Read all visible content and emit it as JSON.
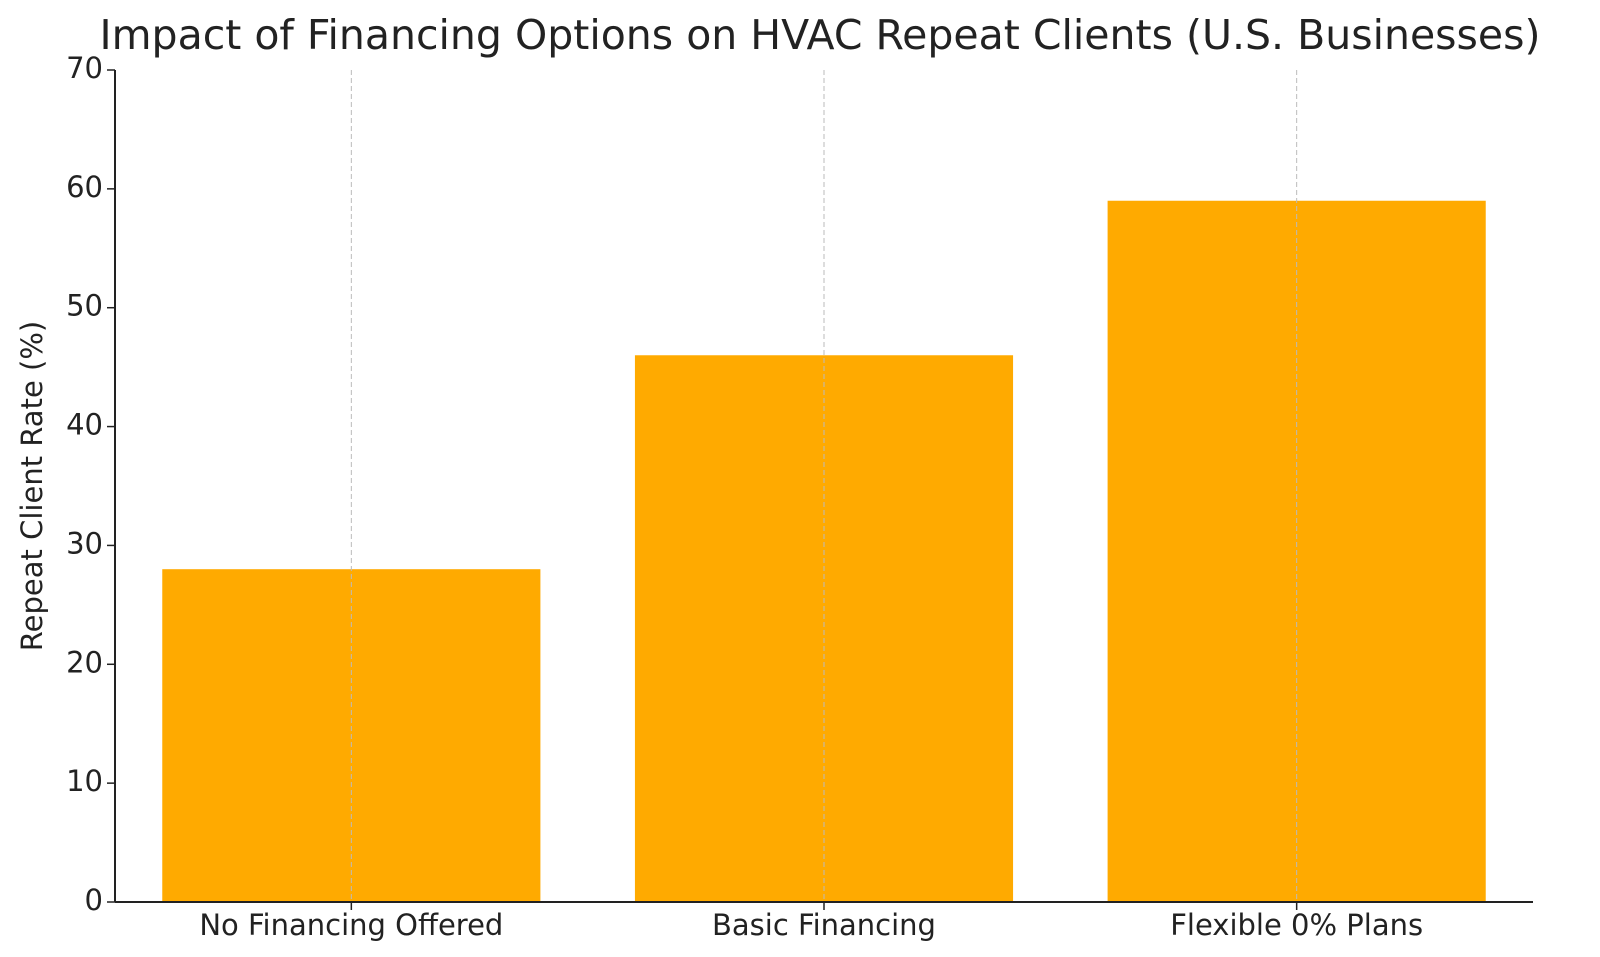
{
  "chart_data": {
    "type": "bar",
    "title": "Impact of Financing Options on HVAC Repeat Clients (U.S. Businesses)",
    "y_label": "Repeat Client Rate (%)",
    "categories": [
      "No Financing Offered",
      "Basic Financing",
      "Flexible 0% Plans"
    ],
    "values": [
      28,
      46,
      59
    ],
    "color": "#ffaa00",
    "ylim": [
      0,
      70
    ],
    "yticks": [
      0,
      10,
      20,
      30,
      40,
      50,
      60,
      70
    ],
    "grid": "x"
  }
}
